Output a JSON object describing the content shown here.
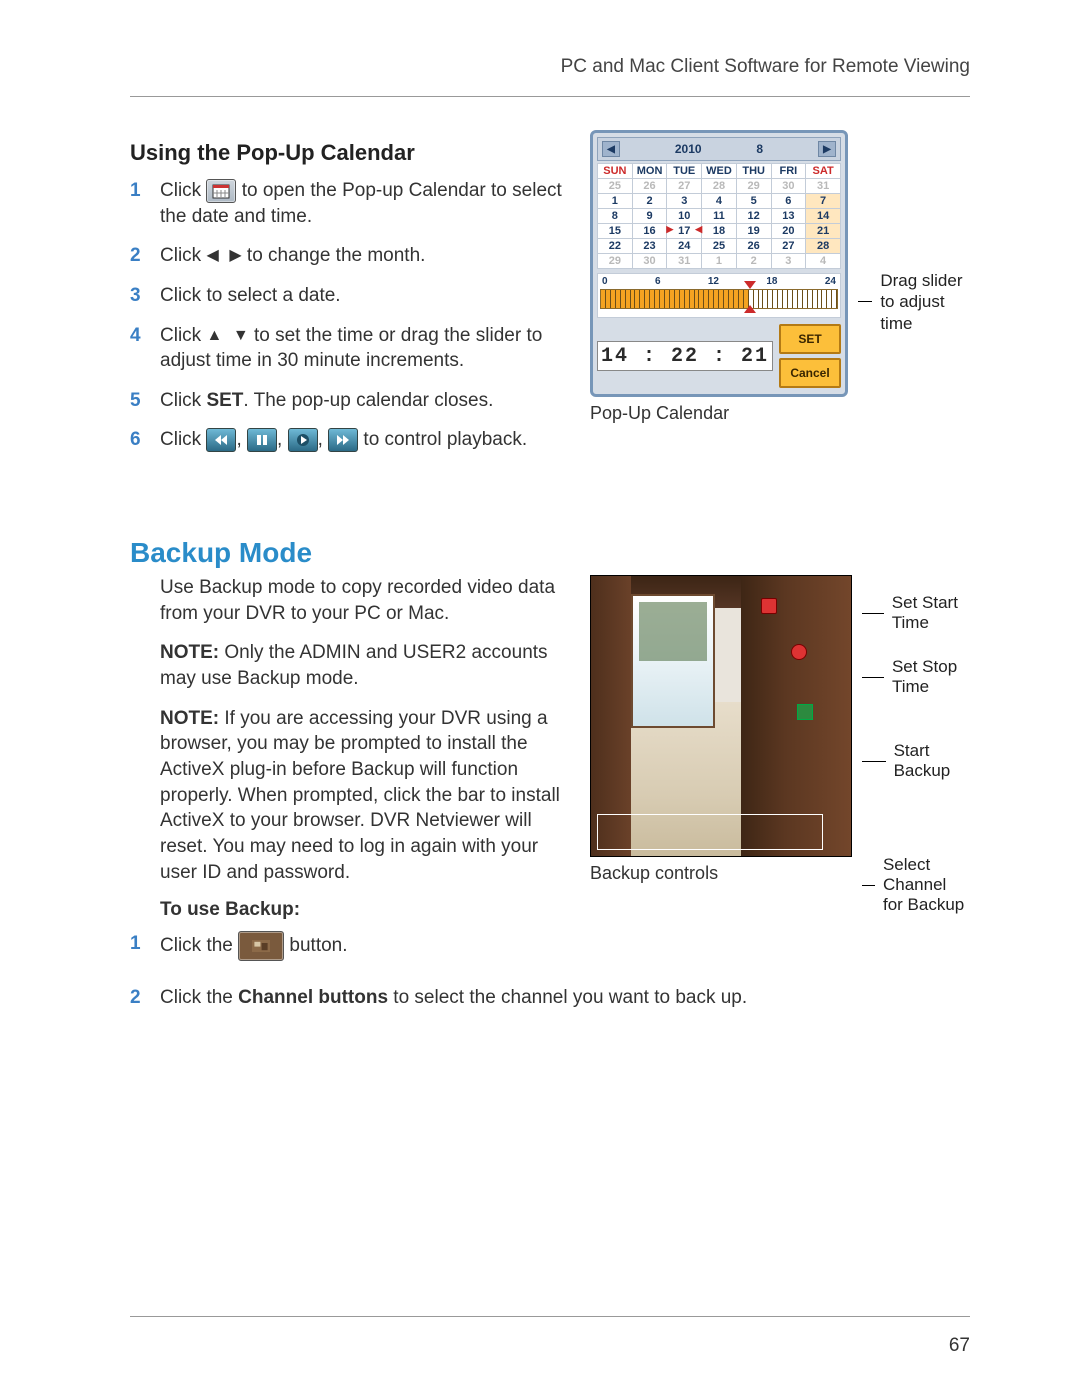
{
  "header": "PC and Mac Client Software for Remote Viewing",
  "page_number": "67",
  "section1": {
    "title": "Using the Pop-Up Calendar",
    "steps": [
      {
        "n": "1",
        "pre": "Click ",
        "post": " to open the Pop-up Calendar to select the date and time."
      },
      {
        "n": "2",
        "pre": "Click ",
        "mid": " to change the month."
      },
      {
        "n": "3",
        "text": "Click to select a date."
      },
      {
        "n": "4",
        "pre": "Click ",
        "post": " to set the time or drag the slider to adjust time in 30 minute increments."
      },
      {
        "n": "5",
        "pre": "Click ",
        "bold": "SET",
        "post": ". The pop-up calendar closes."
      },
      {
        "n": "6",
        "pre": "Click ",
        "post": " to control playback."
      }
    ],
    "calendar": {
      "year": "2010",
      "month": "8",
      "dow": [
        "SUN",
        "MON",
        "TUE",
        "WED",
        "THU",
        "FRI",
        "SAT"
      ],
      "rows": [
        [
          "25",
          "26",
          "27",
          "28",
          "29",
          "30",
          "31"
        ],
        [
          "1",
          "2",
          "3",
          "4",
          "5",
          "6",
          "7"
        ],
        [
          "8",
          "9",
          "10",
          "11",
          "12",
          "13",
          "14"
        ],
        [
          "15",
          "16",
          "17",
          "18",
          "19",
          "20",
          "21"
        ],
        [
          "22",
          "23",
          "24",
          "25",
          "26",
          "27",
          "28"
        ],
        [
          "29",
          "30",
          "31",
          "1",
          "2",
          "3",
          "4"
        ]
      ],
      "today_row": 3,
      "today_col": 2,
      "ruler": [
        "0",
        "6",
        "12",
        "18",
        "24"
      ],
      "time": "14 : 22 : 21",
      "set": "SET",
      "cancel": "Cancel",
      "caption": "Pop-Up Calendar",
      "annot": "Drag slider to adjust time"
    }
  },
  "section2": {
    "title": "Backup Mode",
    "intro": "Use Backup mode to copy recorded video data from your DVR to your PC or Mac.",
    "note1_head": "NOTE:",
    "note1": " Only the ADMIN and USER2 accounts may use Backup mode.",
    "note2_head": "NOTE:",
    "note2": " If you are accessing your DVR using a browser, you may be prompted to install the ActiveX plug-in before Backup will function properly. When prompted, click the bar to install ActiveX to your browser. DVR Netviewer will reset. You may need to log in again with your user ID and password.",
    "to_use": "To use Backup:",
    "step1_pre": "Click the ",
    "step1_post": " button.",
    "step2_pre": "Click the ",
    "step2_bold": "Channel buttons",
    "step2_post": " to select the channel you want to back up.",
    "annots": [
      "Set Start Time",
      "Set Stop Time",
      "Start Backup",
      "Select Channel for Backup"
    ],
    "caption": "Backup controls"
  }
}
